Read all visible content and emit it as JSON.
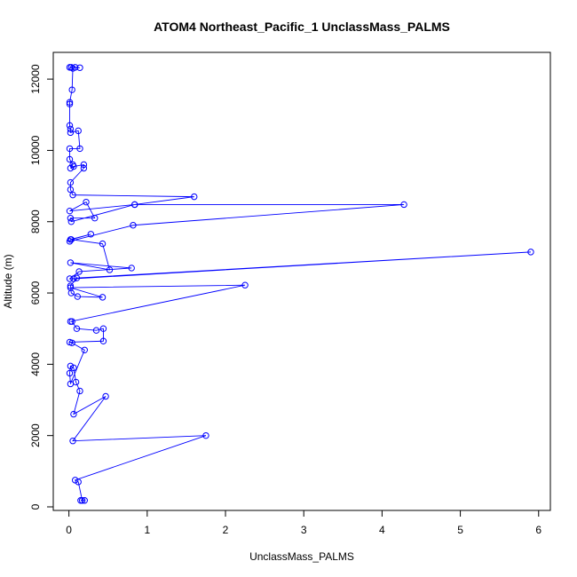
{
  "chart_data": {
    "type": "line",
    "title": "ATOM4 Northeast_Pacific_1 UnclassMass_PALMS",
    "xlabel": "UnclassMass_PALMS",
    "ylabel": "Altitude (m)",
    "xlim": [
      -0.2,
      6.15
    ],
    "ylim": [
      -100,
      12750
    ],
    "x_ticks": [
      0,
      1,
      2,
      3,
      4,
      5,
      6
    ],
    "y_ticks": [
      0,
      2000,
      4000,
      6000,
      8000,
      10000,
      12000
    ],
    "grid": false,
    "legend": "none",
    "line_color": "#0000ff",
    "markers": "open-circle",
    "series": [
      {
        "points": [
          [
            0.15,
            180
          ],
          [
            0.2,
            180
          ],
          [
            0.17,
            180
          ],
          [
            0.12,
            700
          ],
          [
            0.08,
            750
          ],
          [
            1.75,
            2000
          ],
          [
            0.05,
            1850
          ],
          [
            0.47,
            3100
          ],
          [
            0.06,
            2600
          ],
          [
            0.14,
            3250
          ],
          [
            0.09,
            3500
          ],
          [
            0.06,
            3900
          ],
          [
            0.02,
            3950
          ],
          [
            0.01,
            3750
          ],
          [
            0.02,
            3450
          ],
          [
            0.2,
            4400
          ],
          [
            0.04,
            4600
          ],
          [
            0.01,
            4620
          ],
          [
            0.44,
            4650
          ],
          [
            0.44,
            5000
          ],
          [
            0.35,
            4950
          ],
          [
            0.1,
            5000
          ],
          [
            0.04,
            5200
          ],
          [
            0.02,
            5200
          ],
          [
            2.25,
            6220
          ],
          [
            0.02,
            6150
          ],
          [
            0.43,
            5880
          ],
          [
            0.11,
            5900
          ],
          [
            0.03,
            6000
          ],
          [
            0.02,
            6200
          ],
          [
            0.1,
            6420
          ],
          [
            5.9,
            7150
          ],
          [
            0.06,
            6400
          ],
          [
            0.01,
            6400
          ],
          [
            0.13,
            6600
          ],
          [
            0.8,
            6700
          ],
          [
            0.02,
            6850
          ],
          [
            0.52,
            6650
          ],
          [
            0.43,
            7380
          ],
          [
            0.03,
            7500
          ],
          [
            0.28,
            7650
          ],
          [
            0.02,
            7500
          ],
          [
            0.01,
            7450
          ],
          [
            0.82,
            7900
          ],
          [
            4.28,
            8480
          ],
          [
            0.84,
            8480
          ],
          [
            0.03,
            8000
          ],
          [
            0.02,
            8100
          ],
          [
            0.33,
            8100
          ],
          [
            0.22,
            8550
          ],
          [
            0.01,
            8300
          ],
          [
            0.84,
            8480
          ],
          [
            1.6,
            8700
          ],
          [
            0.05,
            8750
          ],
          [
            0.02,
            8900
          ],
          [
            0.02,
            9100
          ],
          [
            0.19,
            9500
          ],
          [
            0.19,
            9600
          ],
          [
            0.06,
            9550
          ],
          [
            0.02,
            9500
          ],
          [
            0.05,
            9600
          ],
          [
            0.01,
            9750
          ],
          [
            0.01,
            10050
          ],
          [
            0.14,
            10050
          ],
          [
            0.12,
            10550
          ],
          [
            0.02,
            10500
          ],
          [
            0.02,
            10600
          ],
          [
            0.01,
            10700
          ],
          [
            0.01,
            11300
          ],
          [
            0.01,
            11350
          ],
          [
            0.04,
            11700
          ],
          [
            0.05,
            12300
          ],
          [
            0.01,
            12330
          ],
          [
            0.08,
            12330
          ],
          [
            0.14,
            12320
          ],
          [
            0.03,
            12330
          ]
        ]
      }
    ]
  }
}
